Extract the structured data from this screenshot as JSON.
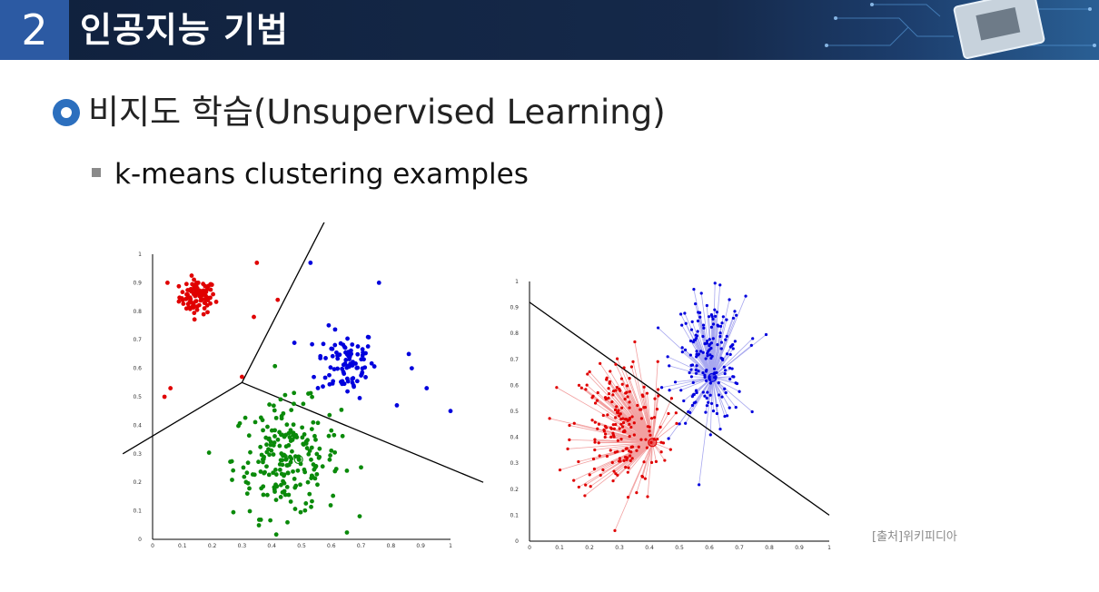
{
  "header": {
    "section_number": "2",
    "title": "인공지능 기법"
  },
  "content": {
    "heading": "비지도 학습(Unsupervised Learning)",
    "subheading": "k-means clustering examples",
    "source": "[출처]위키피디아"
  },
  "colors": {
    "header_bg": "#15294a",
    "accent": "#2c5aa3",
    "cluster_red": "#e00000",
    "cluster_blue": "#0000dd",
    "cluster_green": "#0a8a0a"
  },
  "chart_data": [
    {
      "type": "scatter",
      "title": "",
      "xlim": [
        0,
        1
      ],
      "ylim": [
        0,
        1
      ],
      "x_ticks": [
        "0",
        "0.1",
        "0.2",
        "0.3",
        "0.4",
        "0.5",
        "0.6",
        "0.7",
        "0.8",
        "0.9",
        "1"
      ],
      "y_ticks": [
        "0",
        "0.1",
        "0.2",
        "0.3",
        "0.4",
        "0.5",
        "0.6",
        "0.7",
        "0.8",
        "0.9",
        "1"
      ],
      "clusters": [
        {
          "color": "red",
          "center": [
            0.15,
            0.85
          ],
          "spread": [
            0.03,
            0.03
          ],
          "count": 90
        },
        {
          "color": "blue",
          "center": [
            0.65,
            0.62
          ],
          "spread": [
            0.05,
            0.06
          ],
          "count": 90
        },
        {
          "color": "green",
          "center": [
            0.45,
            0.28
          ],
          "spread": [
            0.09,
            0.1
          ],
          "count": 220
        }
      ],
      "outliers": [
        {
          "color": "red",
          "points": [
            [
              0.05,
              0.9
            ],
            [
              0.35,
              0.97
            ],
            [
              0.42,
              0.84
            ],
            [
              0.34,
              0.78
            ],
            [
              0.3,
              0.57
            ],
            [
              0.06,
              0.53
            ],
            [
              0.04,
              0.5
            ]
          ]
        },
        {
          "color": "blue",
          "points": [
            [
              0.53,
              0.97
            ],
            [
              0.76,
              0.9
            ],
            [
              0.86,
              0.65
            ],
            [
              0.87,
              0.6
            ],
            [
              0.92,
              0.53
            ],
            [
              1.0,
              0.45
            ],
            [
              0.82,
              0.47
            ]
          ]
        }
      ],
      "boundaries": [
        [
          [
            0.3,
            0.55
          ],
          [
            0.58,
            1.12
          ]
        ],
        [
          [
            0.3,
            0.55
          ],
          [
            -0.1,
            0.3
          ]
        ],
        [
          [
            0.3,
            0.55
          ],
          [
            1.11,
            0.2
          ]
        ]
      ],
      "centroids": [
        {
          "color": "green",
          "point": [
            0.49,
            0.28
          ]
        }
      ]
    },
    {
      "type": "scatter",
      "title": "",
      "xlim": [
        0,
        1
      ],
      "ylim": [
        0,
        1
      ],
      "x_ticks": [
        "0",
        "0.1",
        "0.2",
        "0.3",
        "0.4",
        "0.5",
        "0.6",
        "0.7",
        "0.8",
        "0.9",
        "1"
      ],
      "y_ticks": [
        "0",
        "0.1",
        "0.2",
        "0.3",
        "0.4",
        "0.5",
        "0.6",
        "0.7",
        "0.8",
        "0.9",
        "1"
      ],
      "clusters": [
        {
          "color": "blue",
          "center": [
            0.6,
            0.7
          ],
          "spread": [
            0.06,
            0.12
          ],
          "count": 180
        },
        {
          "color": "red",
          "center": [
            0.3,
            0.44
          ],
          "spread": [
            0.08,
            0.14
          ],
          "count": 200
        }
      ],
      "centroids": [
        {
          "color": "blue",
          "point": [
            0.61,
            0.63
          ]
        },
        {
          "color": "red",
          "point": [
            0.41,
            0.38
          ]
        }
      ],
      "boundaries": [
        [
          [
            0.0,
            0.92
          ],
          [
            1.0,
            0.1
          ]
        ]
      ]
    }
  ]
}
